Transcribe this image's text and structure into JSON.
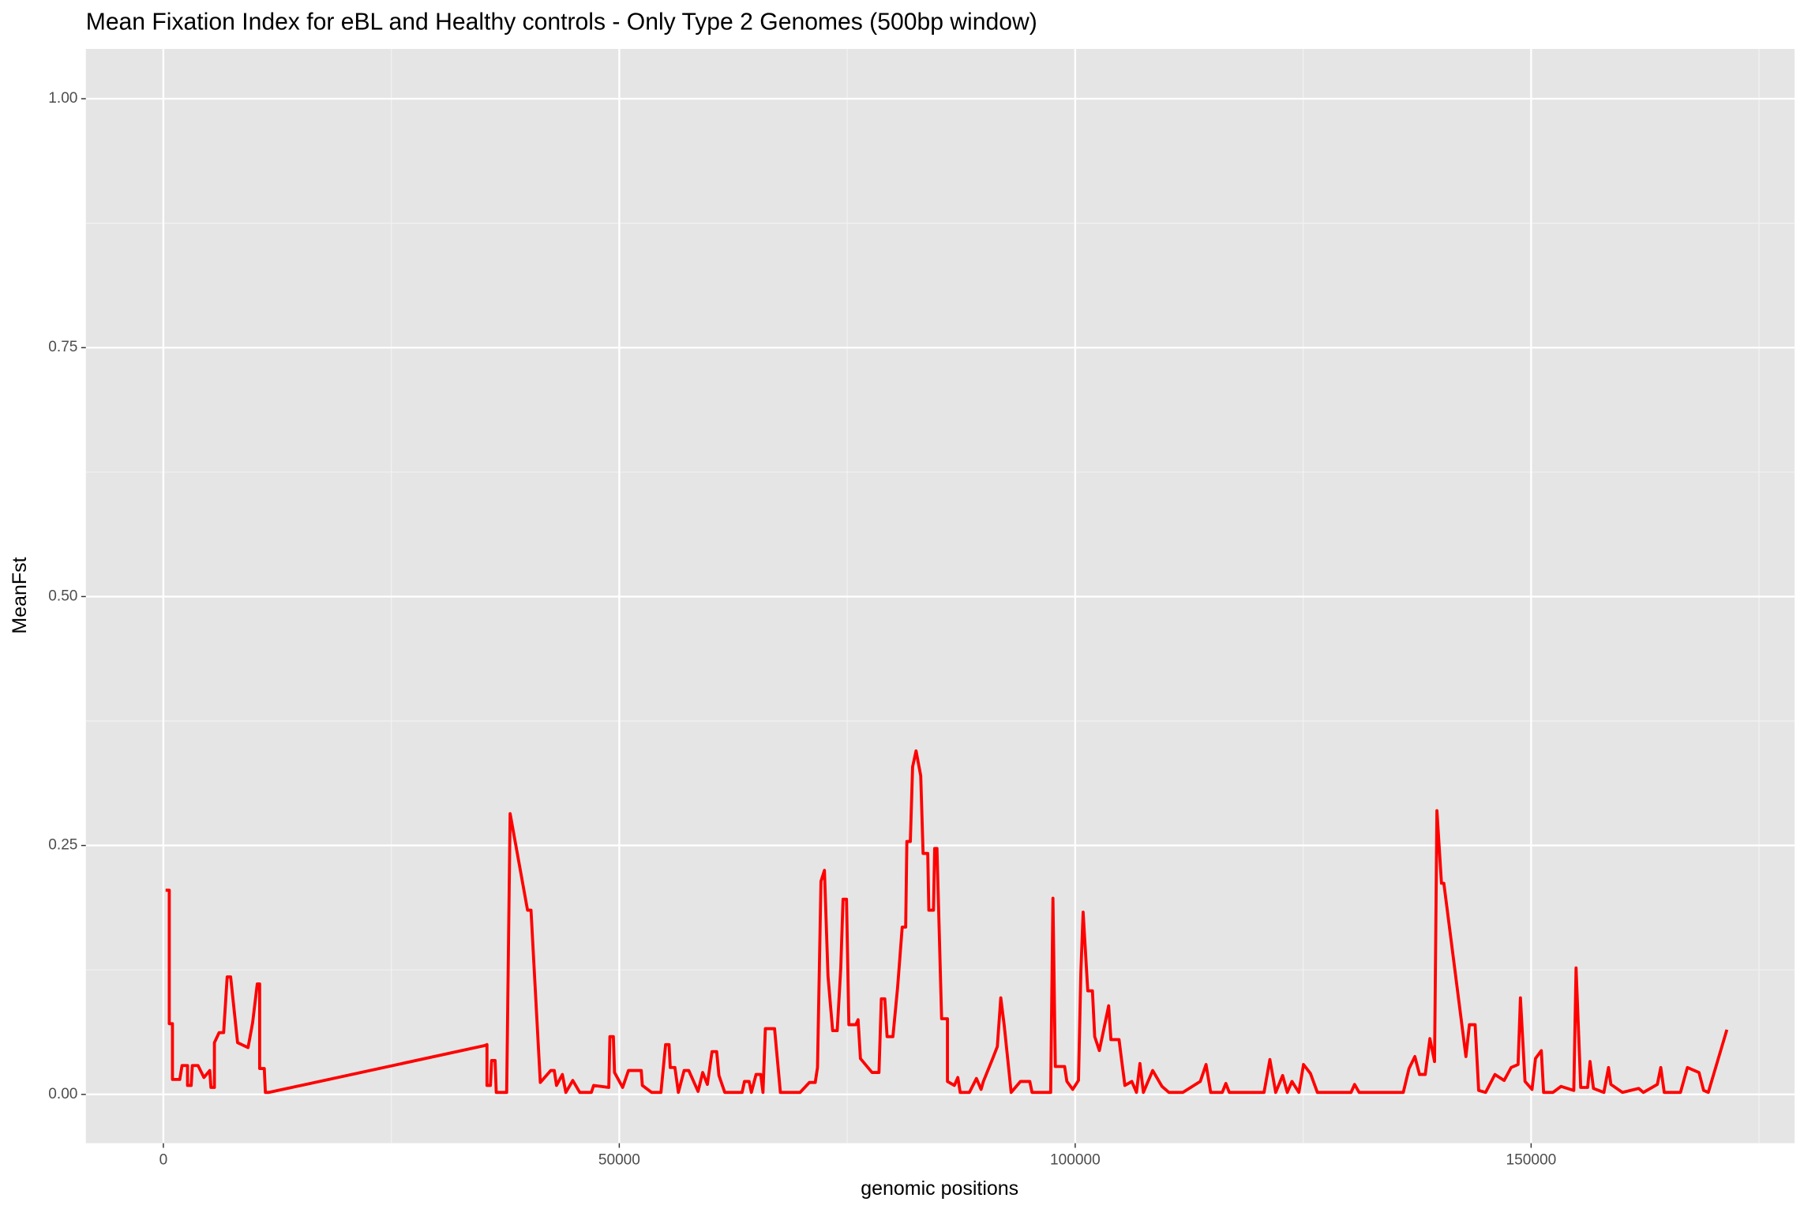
{
  "chart_data": {
    "type": "line",
    "title": "Mean Fixation Index for eBL and Healthy controls - Only Type 2 Genomes (500bp window)",
    "x_label": "genomic positions",
    "y_label": "MeanFst",
    "xlim": [
      -8500,
      178900
    ],
    "ylim": [
      -0.049,
      1.05
    ],
    "xticks": [
      0,
      50000,
      100000,
      150000
    ],
    "yticks": [
      {
        "value": 0,
        "label": "0.00"
      },
      {
        "value": 0.25,
        "label": "0.25"
      },
      {
        "value": 0.5,
        "label": "0.50"
      },
      {
        "value": 0.75,
        "label": "0.75"
      },
      {
        "value": 1,
        "label": "1.00"
      }
    ],
    "x_minor": [
      25000,
      75000,
      125000,
      175000
    ],
    "y_minor": [
      0.125,
      0.375,
      0.625,
      0.875
    ],
    "grid": true,
    "background": "#e5e5e5",
    "series": [
      {
        "name": "MeanFst",
        "color": "#ff0000",
        "x": [
          250,
          650,
          650,
          1000,
          1000,
          1800,
          2050,
          2650,
          2650,
          3050,
          3180,
          3800,
          4450,
          5090,
          5220,
          5600,
          5600,
          6110,
          6610,
          7000,
          7380,
          8140,
          9290,
          9790,
          10300,
          10560,
          10560,
          11070,
          11190,
          11580,
          35230,
          35490,
          35490,
          35870,
          36000,
          36380,
          36510,
          37650,
          38030,
          39940,
          40320,
          41340,
          42490,
          42870,
          43120,
          43760,
          44140,
          44900,
          45670,
          46940,
          47190,
          48850,
          48970,
          49350,
          49480,
          50370,
          51010,
          52410,
          52530,
          53550,
          54570,
          55080,
          55460,
          55590,
          56100,
          56480,
          57110,
          57620,
          58640,
          59150,
          59660,
          60170,
          60680,
          60930,
          61570,
          63470,
          63730,
          64240,
          64490,
          65000,
          65510,
          65760,
          66020,
          67030,
          67670,
          69830,
          70850,
          71490,
          71740,
          72120,
          72500,
          72890,
          73400,
          73900,
          74290,
          74540,
          74920,
          75180,
          75940,
          76190,
          76450,
          77720,
          78480,
          78740,
          79120,
          79370,
          80010,
          80520,
          81030,
          81410,
          81540,
          81920,
          82170,
          82550,
          83060,
          83320,
          83830,
          83950,
          84460,
          84590,
          84840,
          85350,
          85990,
          85990,
          86750,
          87130,
          87390,
          88400,
          89170,
          89680,
          89930,
          90950,
          91460,
          91840,
          92220,
          92980,
          94000,
          95020,
          95270,
          97310,
          97560,
          97820,
          98840,
          99090,
          99730,
          100360,
          100620,
          100870,
          101380,
          101890,
          102140,
          102650,
          103670,
          103920,
          104810,
          105070,
          105450,
          106210,
          106720,
          107100,
          107480,
          108500,
          109520,
          110280,
          111810,
          113720,
          114350,
          114860,
          116130,
          116520,
          116900,
          120710,
          121350,
          121990,
          122750,
          123260,
          123770,
          124530,
          125040,
          125800,
          126560,
          130250,
          130640,
          131140,
          135980,
          136610,
          137250,
          137760,
          138390,
          138900,
          139410,
          139670,
          140170,
          140430,
          142850,
          143230,
          143860,
          144250,
          145010,
          146030,
          147040,
          147810,
          148570,
          148830,
          149330,
          150100,
          150480,
          151120,
          151370,
          152390,
          153280,
          154680,
          154930,
          155440,
          156200,
          156460,
          156840,
          157980,
          158490,
          158750,
          160020,
          161800,
          162310,
          163840,
          164220,
          164600,
          166380,
          167140,
          168410,
          168920,
          169430,
          171470
        ],
        "values": [
          0.205,
          0.205,
          0.071,
          0.071,
          0.015,
          0.015,
          0.029,
          0.029,
          0.009,
          0.009,
          0.029,
          0.029,
          0.017,
          0.024,
          0.007,
          0.007,
          0.052,
          0.062,
          0.062,
          0.118,
          0.118,
          0.052,
          0.047,
          0.072,
          0.111,
          0.111,
          0.026,
          0.026,
          0.002,
          0.002,
          0.049,
          0.05,
          0.009,
          0.009,
          0.034,
          0.034,
          0.002,
          0.002,
          0.282,
          0.185,
          0.185,
          0.012,
          0.024,
          0.024,
          0.009,
          0.02,
          0.002,
          0.014,
          0.002,
          0.002,
          0.009,
          0.007,
          0.058,
          0.058,
          0.022,
          0.007,
          0.024,
          0.024,
          0.009,
          0.002,
          0.002,
          0.05,
          0.05,
          0.027,
          0.027,
          0.002,
          0.024,
          0.024,
          0.003,
          0.022,
          0.01,
          0.043,
          0.043,
          0.019,
          0.002,
          0.002,
          0.013,
          0.013,
          0.002,
          0.02,
          0.02,
          0.002,
          0.066,
          0.066,
          0.002,
          0.002,
          0.012,
          0.012,
          0.027,
          0.214,
          0.225,
          0.119,
          0.064,
          0.064,
          0.127,
          0.196,
          0.196,
          0.07,
          0.07,
          0.075,
          0.036,
          0.022,
          0.022,
          0.096,
          0.096,
          0.058,
          0.058,
          0.107,
          0.168,
          0.168,
          0.254,
          0.254,
          0.329,
          0.345,
          0.32,
          0.242,
          0.242,
          0.185,
          0.185,
          0.247,
          0.247,
          0.076,
          0.076,
          0.013,
          0.009,
          0.017,
          0.002,
          0.002,
          0.016,
          0.005,
          0.013,
          0.036,
          0.048,
          0.097,
          0.069,
          0.002,
          0.013,
          0.013,
          0.002,
          0.002,
          0.197,
          0.028,
          0.028,
          0.013,
          0.005,
          0.014,
          0.122,
          0.183,
          0.104,
          0.104,
          0.058,
          0.044,
          0.089,
          0.055,
          0.055,
          0.036,
          0.009,
          0.013,
          0.002,
          0.031,
          0.002,
          0.024,
          0.008,
          0.002,
          0.002,
          0.013,
          0.03,
          0.002,
          0.002,
          0.011,
          0.002,
          0.002,
          0.035,
          0.002,
          0.019,
          0.002,
          0.013,
          0.002,
          0.03,
          0.021,
          0.002,
          0.002,
          0.01,
          0.002,
          0.002,
          0.026,
          0.038,
          0.02,
          0.02,
          0.056,
          0.033,
          0.285,
          0.212,
          0.212,
          0.038,
          0.07,
          0.07,
          0.004,
          0.002,
          0.02,
          0.014,
          0.027,
          0.03,
          0.097,
          0.013,
          0.005,
          0.036,
          0.044,
          0.002,
          0.002,
          0.008,
          0.004,
          0.127,
          0.007,
          0.007,
          0.033,
          0.006,
          0.002,
          0.027,
          0.01,
          0.002,
          0.006,
          0.002,
          0.01,
          0.027,
          0.002,
          0.002,
          0.027,
          0.022,
          0.004,
          0.002,
          0.065
        ]
      }
    ]
  }
}
